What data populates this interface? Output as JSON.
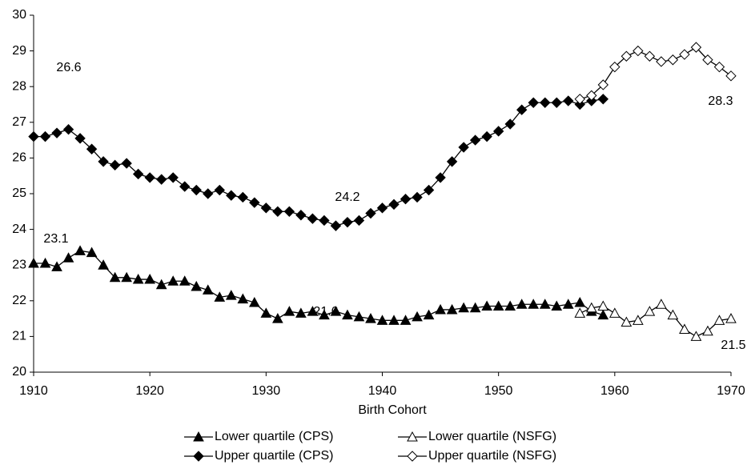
{
  "chart_data": {
    "type": "line",
    "x_label": "Birth Cohort",
    "xlim": [
      1910,
      1970
    ],
    "xticks": [
      1910,
      1920,
      1930,
      1940,
      1950,
      1960,
      1970
    ],
    "ylim": [
      20,
      30
    ],
    "yticks": [
      20,
      21,
      22,
      23,
      24,
      25,
      26,
      27,
      28,
      29,
      30
    ],
    "series": [
      {
        "name": "Lower quartile (CPS)",
        "color": "#000000",
        "marker": "triangle",
        "filled": true,
        "x": [
          1910,
          1911,
          1912,
          1913,
          1914,
          1915,
          1916,
          1917,
          1918,
          1919,
          1920,
          1921,
          1922,
          1923,
          1924,
          1925,
          1926,
          1927,
          1928,
          1929,
          1930,
          1931,
          1932,
          1933,
          1934,
          1935,
          1936,
          1937,
          1938,
          1939,
          1940,
          1941,
          1942,
          1943,
          1944,
          1945,
          1946,
          1947,
          1948,
          1949,
          1950,
          1951,
          1952,
          1953,
          1954,
          1955,
          1956,
          1957,
          1958,
          1959
        ],
        "values": [
          23.05,
          23.05,
          22.95,
          23.2,
          23.4,
          23.35,
          23.0,
          22.65,
          22.65,
          22.6,
          22.6,
          22.45,
          22.55,
          22.55,
          22.4,
          22.3,
          22.1,
          22.15,
          22.05,
          21.95,
          21.65,
          21.5,
          21.7,
          21.65,
          21.7,
          21.6,
          21.7,
          21.6,
          21.55,
          21.5,
          21.45,
          21.45,
          21.45,
          21.55,
          21.6,
          21.75,
          21.75,
          21.8,
          21.8,
          21.85,
          21.85,
          21.85,
          21.9,
          21.9,
          21.9,
          21.85,
          21.9,
          21.95,
          21.7,
          21.6
        ]
      },
      {
        "name": "Lower quartile (NSFG)",
        "color": "#000000",
        "marker": "triangle",
        "filled": false,
        "x": [
          1957,
          1958,
          1959,
          1960,
          1961,
          1962,
          1963,
          1964,
          1965,
          1966,
          1967,
          1968,
          1969,
          1970
        ],
        "values": [
          21.65,
          21.8,
          21.85,
          21.65,
          21.4,
          21.45,
          21.7,
          21.9,
          21.6,
          21.2,
          21.0,
          21.15,
          21.45,
          21.5
        ]
      },
      {
        "name": "Upper quartile (CPS)",
        "color": "#000000",
        "marker": "diamond",
        "filled": true,
        "x": [
          1910,
          1911,
          1912,
          1913,
          1914,
          1915,
          1916,
          1917,
          1918,
          1919,
          1920,
          1921,
          1922,
          1923,
          1924,
          1925,
          1926,
          1927,
          1928,
          1929,
          1930,
          1931,
          1932,
          1933,
          1934,
          1935,
          1936,
          1937,
          1938,
          1939,
          1940,
          1941,
          1942,
          1943,
          1944,
          1945,
          1946,
          1947,
          1948,
          1949,
          1950,
          1951,
          1952,
          1953,
          1954,
          1955,
          1956,
          1957,
          1958,
          1959
        ],
        "values": [
          26.6,
          26.6,
          26.7,
          26.8,
          26.55,
          26.25,
          25.9,
          25.8,
          25.85,
          25.55,
          25.45,
          25.4,
          25.45,
          25.2,
          25.1,
          25.0,
          25.1,
          24.95,
          24.9,
          24.75,
          24.6,
          24.5,
          24.5,
          24.4,
          24.3,
          24.25,
          24.1,
          24.2,
          24.25,
          24.45,
          24.6,
          24.7,
          24.85,
          24.9,
          25.1,
          25.45,
          25.9,
          26.3,
          26.5,
          26.6,
          26.75,
          26.95,
          27.35,
          27.55,
          27.55,
          27.55,
          27.6,
          27.5,
          27.6,
          27.65
        ]
      },
      {
        "name": "Upper quartile (NSFG)",
        "color": "#000000",
        "marker": "diamond",
        "filled": false,
        "x": [
          1957,
          1958,
          1959,
          1960,
          1961,
          1962,
          1963,
          1964,
          1965,
          1966,
          1967,
          1968,
          1969,
          1970
        ],
        "values": [
          27.65,
          27.75,
          28.05,
          28.55,
          28.85,
          29.0,
          28.85,
          28.7,
          28.75,
          28.9,
          29.1,
          28.75,
          28.55,
          28.3
        ]
      }
    ],
    "annotations": [
      "26.6",
      "24.2",
      "23.1",
      "21.6",
      "28.3",
      "21.5"
    ]
  }
}
